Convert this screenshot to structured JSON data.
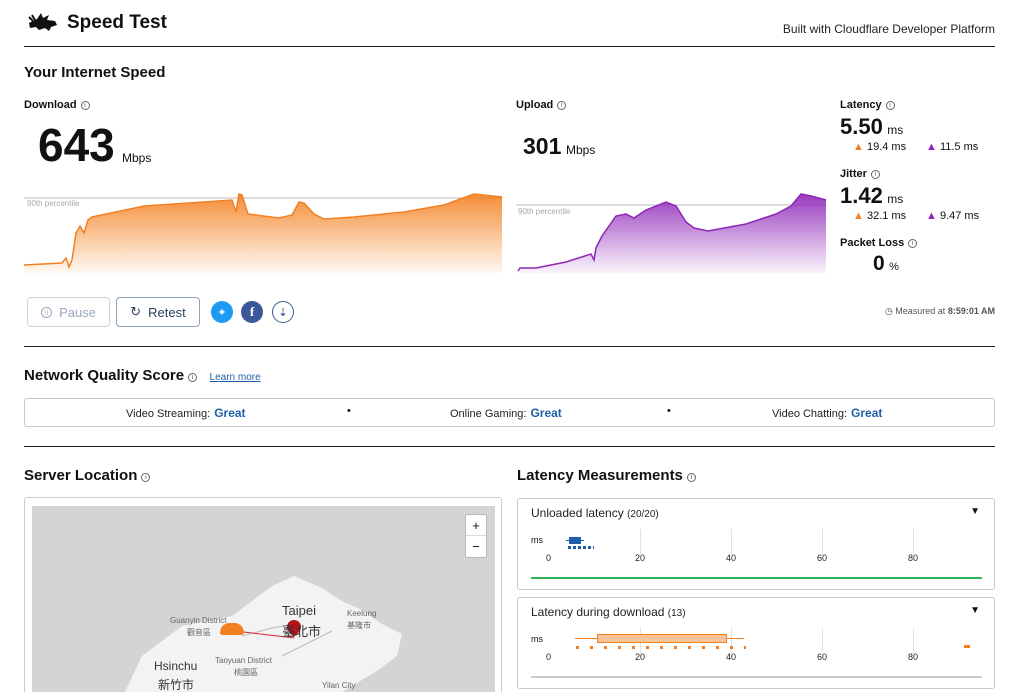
{
  "header": {
    "title": "Speed Test",
    "built_with": "Built with Cloudflare Developer Platform"
  },
  "speed": {
    "section_title": "Your Internet Speed",
    "download": {
      "label": "Download",
      "value": "643",
      "unit": "Mbps",
      "percentile_label": "90th percentile"
    },
    "upload": {
      "label": "Upload",
      "value": "301",
      "unit": "Mbps",
      "percentile_label": "90th percentile"
    },
    "latency": {
      "label": "Latency",
      "value": "5.50",
      "unit": "ms",
      "down": "19.4 ms",
      "up": "11.5 ms"
    },
    "jitter": {
      "label": "Jitter",
      "value": "1.42",
      "unit": "ms",
      "down": "32.1 ms",
      "up": "9.47 ms"
    },
    "packet_loss": {
      "label": "Packet Loss",
      "value": "0",
      "unit": "%"
    },
    "pause_label": "Pause",
    "retest_label": "Retest",
    "measured_prefix": "Measured at",
    "measured_time": "8:59:01 AM"
  },
  "quality": {
    "title": "Network Quality Score",
    "learn_more": "Learn more",
    "items": [
      {
        "label": "Video Streaming:",
        "value": "Great"
      },
      {
        "label": "Online Gaming:",
        "value": "Great"
      },
      {
        "label": "Video Chatting:",
        "value": "Great"
      }
    ],
    "separator": "•"
  },
  "server": {
    "title": "Server Location",
    "zoom_in": "+",
    "zoom_out": "−",
    "places": {
      "taipei_en": "Taipei",
      "taipei_zh": "臺北市",
      "keelung_en": "Keelung",
      "keelung_zh": "基隆市",
      "guanyin_en": "Guanyin District",
      "guanyin_zh": "觀音區",
      "hsinchu_en": "Hsinchu",
      "hsinchu_zh": "新竹市",
      "taoyuan_en": "Taoyuan District",
      "taoyuan_zh": "桃園區",
      "yilan_en": "Yilan City"
    }
  },
  "latency_measurements": {
    "title": "Latency Measurements",
    "unit": "ms",
    "ticks": [
      "0",
      "20",
      "40",
      "60",
      "80"
    ],
    "panels": [
      {
        "title": "Unloaded latency",
        "count": "(20/20)"
      },
      {
        "title": "Latency during download",
        "count": "(13)"
      }
    ]
  },
  "colors": {
    "download": "#f38020",
    "upload": "#8e26b8",
    "accent_blue": "#1f5fa8",
    "good_green": "#2fb35a",
    "twitter": "#1d9bf0",
    "facebook": "#3b5998"
  }
}
